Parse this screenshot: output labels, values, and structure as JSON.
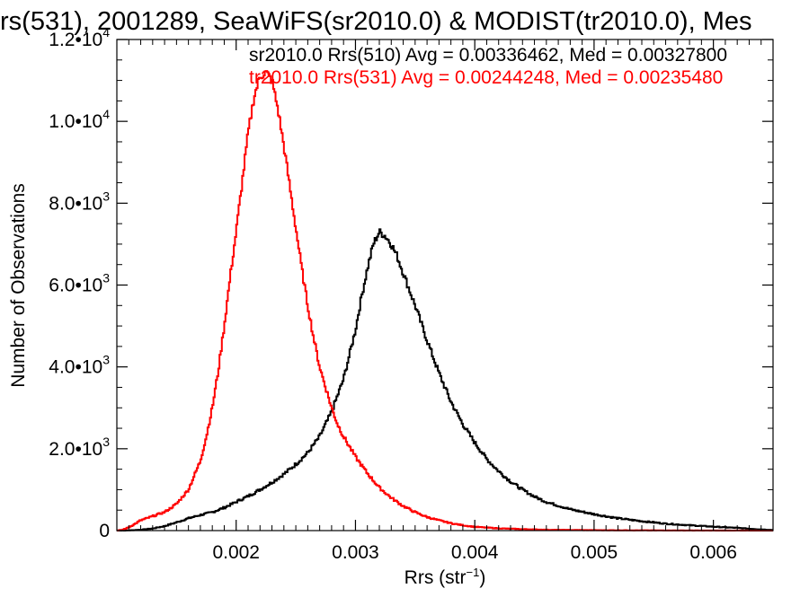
{
  "chart_data": {
    "type": "line",
    "title": "rs(531), 2001289, SeaWiFS(sr2010.0) & MODIST(tr2010.0), Mes",
    "xlabel": "Rrs (str",
    "xlabel_sup": "−1",
    "xlabel_end": ")",
    "ylabel": "Number of Observations",
    "xlim": [
      0.001,
      0.0065
    ],
    "ylim": [
      0,
      12000
    ],
    "x_ticks": [
      {
        "value": 0.002,
        "label": "0.002"
      },
      {
        "value": 0.003,
        "label": "0.003"
      },
      {
        "value": 0.004,
        "label": "0.004"
      },
      {
        "value": 0.005,
        "label": "0.005"
      },
      {
        "value": 0.006,
        "label": "0.006"
      }
    ],
    "y_ticks": [
      {
        "value": 0,
        "mant": "0",
        "exp": ""
      },
      {
        "value": 2000,
        "mant": "2.0•10",
        "exp": "3"
      },
      {
        "value": 4000,
        "mant": "4.0•10",
        "exp": "3"
      },
      {
        "value": 6000,
        "mant": "6.0•10",
        "exp": "3"
      },
      {
        "value": 8000,
        "mant": "8.0•10",
        "exp": "3"
      },
      {
        "value": 10000,
        "mant": "1.0•10",
        "exp": "4"
      },
      {
        "value": 12000,
        "mant": "1.2•10",
        "exp": "4"
      }
    ],
    "grid": false,
    "legend_position": "top-right",
    "series": [
      {
        "name": "sr2010.0 Rrs(510) Avg = 0.00336462, Med = 0.00327800",
        "color": "#000000",
        "x": [
          0.001,
          0.0011,
          0.0012,
          0.0013,
          0.0014,
          0.0015,
          0.0016,
          0.0017,
          0.0018,
          0.0019,
          0.002,
          0.0021,
          0.0022,
          0.0023,
          0.0024,
          0.0025,
          0.0026,
          0.0027,
          0.0028,
          0.0029,
          0.003,
          0.00305,
          0.0031,
          0.00315,
          0.0032,
          0.00325,
          0.0033,
          0.00335,
          0.0034,
          0.0035,
          0.0036,
          0.0037,
          0.0038,
          0.0039,
          0.004,
          0.0041,
          0.0042,
          0.0043,
          0.0044,
          0.0045,
          0.0046,
          0.0048,
          0.005,
          0.0052,
          0.0054,
          0.0056,
          0.0058,
          0.006,
          0.0062,
          0.0064,
          0.0065
        ],
        "y": [
          0,
          5,
          20,
          50,
          110,
          200,
          300,
          380,
          450,
          560,
          700,
          840,
          1000,
          1180,
          1380,
          1620,
          1900,
          2300,
          2900,
          3700,
          4900,
          5700,
          6400,
          7000,
          7300,
          7200,
          7000,
          6700,
          6300,
          5500,
          4650,
          3850,
          3150,
          2600,
          2150,
          1750,
          1450,
          1200,
          1000,
          830,
          700,
          520,
          400,
          300,
          230,
          170,
          130,
          95,
          65,
          30,
          15
        ]
      },
      {
        "name": "tr2010.0 Rrs(531) Avg = 0.00244248, Med = 0.00235480",
        "color": "#ff0000",
        "x": [
          0.001,
          0.00105,
          0.0011,
          0.00115,
          0.0012,
          0.0013,
          0.0014,
          0.0015,
          0.0016,
          0.0017,
          0.00175,
          0.0018,
          0.00185,
          0.0019,
          0.00195,
          0.002,
          0.00205,
          0.0021,
          0.00215,
          0.0022,
          0.00225,
          0.0023,
          0.00235,
          0.0024,
          0.00245,
          0.0025,
          0.00255,
          0.0026,
          0.00265,
          0.0027,
          0.00275,
          0.0028,
          0.00285,
          0.0029,
          0.003,
          0.0031,
          0.0032,
          0.0033,
          0.0034,
          0.0035,
          0.0036,
          0.0037,
          0.0038,
          0.0039,
          0.004,
          0.0042,
          0.0044,
          0.0046,
          0.005,
          0.0055,
          0.006,
          0.0065
        ],
        "y": [
          0,
          20,
          80,
          160,
          250,
          350,
          450,
          650,
          1000,
          1700,
          2300,
          3000,
          3900,
          5000,
          6200,
          7300,
          8500,
          9700,
          10600,
          11100,
          11200,
          11000,
          10300,
          9400,
          8400,
          7400,
          6400,
          5500,
          4700,
          4000,
          3500,
          3000,
          2600,
          2300,
          1800,
          1400,
          1050,
          800,
          600,
          450,
          330,
          250,
          180,
          130,
          90,
          55,
          35,
          20,
          10,
          5,
          2,
          0
        ]
      }
    ]
  }
}
